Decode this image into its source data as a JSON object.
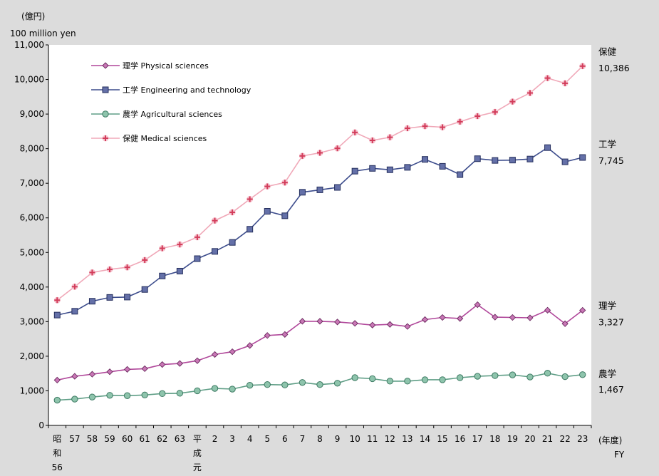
{
  "chart_data": {
    "type": "line",
    "ylabel_jp": "(億円)",
    "ylabel_en": "100 million yen",
    "xlabel_jp": "(年度)",
    "xlabel_en": "FY",
    "ylim": [
      0,
      11000
    ],
    "yticks": [
      "0",
      "1,000",
      "2,000",
      "3,000",
      "4,000",
      "5,000",
      "6,000",
      "7,000",
      "8,000",
      "9,000",
      "10,000",
      "11,000"
    ],
    "grid": false,
    "legend_position": "top-left",
    "categories": [
      [
        "昭",
        "和",
        "56"
      ],
      [
        "57"
      ],
      [
        "58"
      ],
      [
        "59"
      ],
      [
        "60"
      ],
      [
        "61"
      ],
      [
        "62"
      ],
      [
        "63"
      ],
      [
        "平",
        "成",
        "元"
      ],
      [
        "2"
      ],
      [
        "3"
      ],
      [
        "4"
      ],
      [
        "5"
      ],
      [
        "6"
      ],
      [
        "7"
      ],
      [
        "8"
      ],
      [
        "9"
      ],
      [
        "10"
      ],
      [
        "11"
      ],
      [
        "12"
      ],
      [
        "13"
      ],
      [
        "14"
      ],
      [
        "15"
      ],
      [
        "16"
      ],
      [
        "17"
      ],
      [
        "18"
      ],
      [
        "19"
      ],
      [
        "20"
      ],
      [
        "21"
      ],
      [
        "22"
      ],
      [
        "23"
      ]
    ],
    "series": [
      {
        "name": "理学 Physical sciences",
        "end_label": "理学",
        "end_value": "3,327",
        "color": "#b0479a",
        "marker": "diamond",
        "marker_fill": "#c977b6",
        "values": [
          1310,
          1420,
          1480,
          1550,
          1620,
          1640,
          1760,
          1790,
          1870,
          2050,
          2130,
          2310,
          2600,
          2630,
          3010,
          3010,
          2990,
          2950,
          2900,
          2920,
          2860,
          3060,
          3120,
          3090,
          3490,
          3130,
          3120,
          3110,
          3330,
          2940,
          3327
        ]
      },
      {
        "name": "工学 Engineering and technology",
        "end_label": "工学",
        "end_value": "7,745",
        "color": "#3c4c8c",
        "marker": "square",
        "marker_fill": "#6470a8",
        "values": [
          3190,
          3300,
          3590,
          3700,
          3710,
          3930,
          4320,
          4460,
          4820,
          5030,
          5290,
          5670,
          6190,
          6060,
          6740,
          6810,
          6880,
          7350,
          7430,
          7390,
          7460,
          7690,
          7490,
          7250,
          7710,
          7660,
          7670,
          7700,
          8030,
          7620,
          7745
        ]
      },
      {
        "name": "農学 Agricultural sciences",
        "end_label": "農学",
        "end_value": "1,467",
        "color": "#5f9e86",
        "marker": "circle",
        "marker_fill": "#8ec4ac",
        "values": [
          730,
          760,
          820,
          870,
          860,
          880,
          920,
          930,
          1000,
          1070,
          1050,
          1160,
          1180,
          1170,
          1240,
          1180,
          1220,
          1380,
          1350,
          1280,
          1280,
          1320,
          1320,
          1380,
          1420,
          1440,
          1460,
          1400,
          1510,
          1410,
          1467
        ]
      },
      {
        "name": "保健 Medical sciences",
        "end_label": "保健",
        "end_value": "10,386",
        "color": "#f0a8b8",
        "marker": "plus",
        "marker_fill": "#d23c5a",
        "values": [
          3620,
          4010,
          4420,
          4510,
          4570,
          4780,
          5120,
          5230,
          5440,
          5920,
          6160,
          6540,
          6910,
          7020,
          7790,
          7880,
          8010,
          8470,
          8240,
          8330,
          8590,
          8650,
          8620,
          8780,
          8940,
          9060,
          9360,
          9610,
          10040,
          9890,
          10386
        ]
      }
    ]
  }
}
